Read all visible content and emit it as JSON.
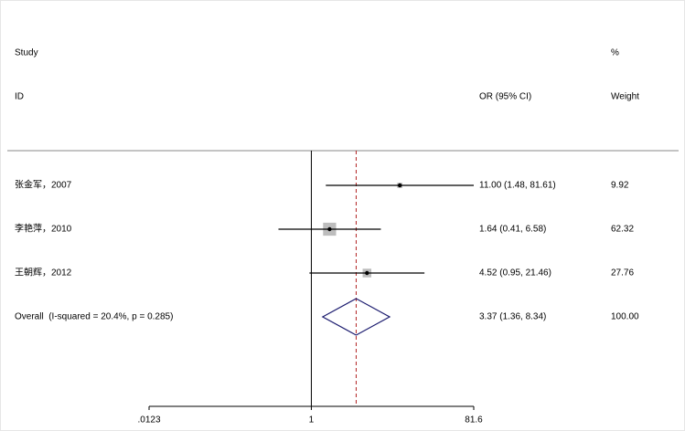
{
  "chart_data": {
    "type": "forest",
    "log_scale": true,
    "headers": {
      "study": "Study",
      "id": "ID",
      "ci": "OR (95% CI)",
      "percent": "%",
      "weight": "Weight"
    },
    "categories": [
      "张金军，2007",
      "李艳萍，2010",
      "王朝辉，2012"
    ],
    "values": [
      11.0,
      1.64,
      4.52
    ],
    "lower": [
      1.48,
      0.41,
      0.95
    ],
    "upper": [
      81.61,
      6.58,
      21.46
    ],
    "value_labels": [
      "11.00 (1.48, 81.61)",
      "1.64 (0.41, 6.58)",
      "4.52 (0.95, 21.46)"
    ],
    "weights": [
      9.92,
      62.32,
      27.76
    ],
    "overall": {
      "label": "Overall  (I-squared = 20.4%, p = 0.285)",
      "value": 3.37,
      "lower": 1.36,
      "upper": 8.34,
      "value_label": "3.37 (1.36, 8.34)",
      "weight": 100,
      "weight_label": "100.00"
    },
    "xlim": [
      0.0123,
      81.6
    ],
    "xticks": [
      {
        "value": 0.0123,
        "label": ".0123"
      },
      1,
      81.6
    ],
    "color": "#000000",
    "box_color": "#bdbdbd",
    "diamond_color": "#1a1a6e",
    "ref_color": "#b22222"
  }
}
